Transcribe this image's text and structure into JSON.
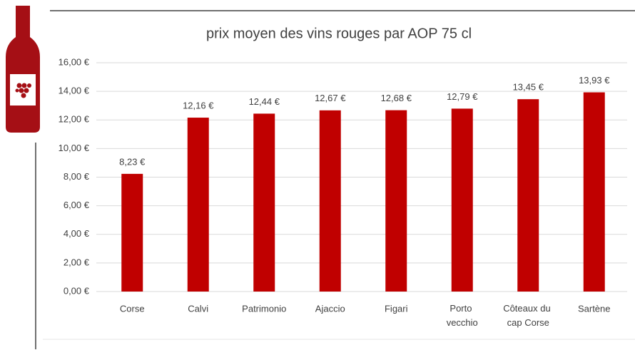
{
  "chart_data": {
    "type": "bar",
    "title": "prix moyen des vins rouges par AOP 75 cl",
    "categories": [
      "Corse",
      "Calvi",
      "Patrimonio",
      "Ajaccio",
      "Figari",
      "Porto vecchio",
      "Côteaux du cap Corse",
      "Sartène"
    ],
    "values": [
      8.23,
      12.16,
      12.44,
      12.67,
      12.68,
      12.79,
      13.45,
      13.93
    ],
    "value_labels": [
      "8,23 €",
      "12,16 €",
      "12,44 €",
      "12,67 €",
      "12,68 €",
      "12,79 €",
      "13,45 €",
      "13,93 €"
    ],
    "color": "#c00000",
    "ylim": [
      0,
      16
    ],
    "yticks": [
      {
        "value": 0,
        "label": "0,00 €"
      },
      {
        "value": 2,
        "label": "2,00 €"
      },
      {
        "value": 4,
        "label": "4,00 €"
      },
      {
        "value": 6,
        "label": "6,00 €"
      },
      {
        "value": 8,
        "label": "8,00 €"
      },
      {
        "value": 10,
        "label": "10,00 €"
      },
      {
        "value": 12,
        "label": "12,00 €"
      },
      {
        "value": 14,
        "label": "14,00 €"
      },
      {
        "value": 16,
        "label": "16,00 €"
      }
    ],
    "grid": true
  }
}
